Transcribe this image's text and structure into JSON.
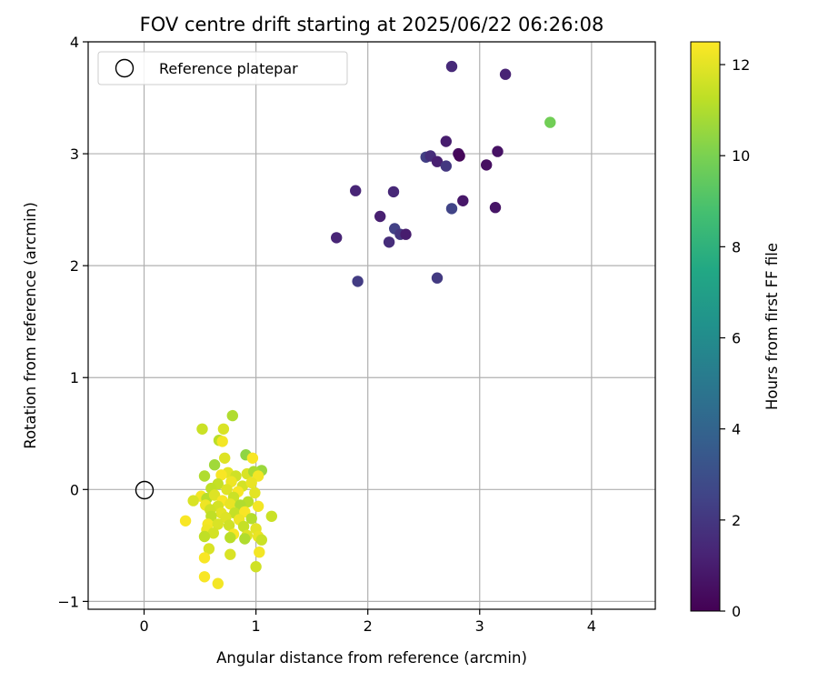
{
  "chart_data": {
    "type": "scatter",
    "title": "FOV centre drift starting at 2025/06/22 06:26:08",
    "xlabel": "Angular distance from reference (arcmin)",
    "ylabel": "Rotation from reference (arcmin)",
    "xlim": [
      -0.5,
      4.57
    ],
    "ylim": [
      -1.07,
      4.0
    ],
    "xticks": [
      0,
      1,
      2,
      3,
      4
    ],
    "yticks": [
      -1,
      0,
      1,
      2,
      3,
      4
    ],
    "grid": true,
    "legend": {
      "position": "top-left",
      "entries": [
        "Reference platepar"
      ]
    },
    "reference_point": {
      "x": 0,
      "y": 0
    },
    "colorbar": {
      "label": "Hours from first FF file",
      "range": [
        0,
        12.5
      ],
      "ticks": [
        0,
        2,
        4,
        6,
        8,
        10,
        12
      ],
      "colormap": "viridis"
    },
    "points": [
      [
        2.75,
        3.78,
        1.5
      ],
      [
        3.23,
        3.71,
        1.2
      ],
      [
        3.63,
        3.28,
        9.8
      ],
      [
        2.7,
        3.11,
        1.0
      ],
      [
        2.81,
        3.0,
        0.4
      ],
      [
        2.82,
        2.98,
        0.2
      ],
      [
        3.16,
        3.02,
        0.6
      ],
      [
        2.52,
        2.97,
        2.3
      ],
      [
        2.56,
        2.98,
        1.6
      ],
      [
        2.62,
        2.93,
        1.1
      ],
      [
        2.7,
        2.89,
        2.0
      ],
      [
        3.06,
        2.9,
        0.5
      ],
      [
        1.89,
        2.67,
        1.3
      ],
      [
        2.23,
        2.66,
        1.4
      ],
      [
        2.85,
        2.58,
        0.8
      ],
      [
        2.75,
        2.51,
        2.5
      ],
      [
        3.14,
        2.52,
        0.7
      ],
      [
        2.11,
        2.44,
        1.1
      ],
      [
        2.24,
        2.33,
        2.4
      ],
      [
        2.29,
        2.28,
        1.9
      ],
      [
        2.34,
        2.28,
        1.0
      ],
      [
        2.19,
        2.21,
        1.6
      ],
      [
        1.72,
        2.25,
        1.3
      ],
      [
        1.91,
        1.86,
        2.2
      ],
      [
        2.62,
        1.89,
        2.1
      ],
      [
        0.79,
        0.66,
        11.0
      ],
      [
        0.52,
        0.54,
        11.5
      ],
      [
        0.71,
        0.54,
        11.8
      ],
      [
        0.67,
        0.44,
        11.2
      ],
      [
        0.7,
        0.43,
        12.3
      ],
      [
        0.91,
        0.31,
        10.4
      ],
      [
        0.72,
        0.28,
        11.9
      ],
      [
        0.97,
        0.28,
        12.4
      ],
      [
        0.63,
        0.22,
        10.7
      ],
      [
        1.05,
        0.17,
        10.6
      ],
      [
        0.75,
        0.15,
        12.0
      ],
      [
        0.54,
        0.12,
        11.0
      ],
      [
        0.69,
        0.13,
        12.4
      ],
      [
        0.82,
        0.12,
        11.6
      ],
      [
        0.92,
        0.14,
        11.8
      ],
      [
        0.98,
        0.16,
        10.9
      ],
      [
        1.02,
        0.12,
        12.3
      ],
      [
        0.66,
        0.05,
        11.4
      ],
      [
        0.78,
        0.07,
        12.2
      ],
      [
        0.88,
        0.03,
        11.7
      ],
      [
        0.96,
        0.06,
        12.1
      ],
      [
        0.6,
        0.01,
        11.3
      ],
      [
        0.74,
        0.0,
        11.9
      ],
      [
        0.84,
        -0.02,
        12.4
      ],
      [
        0.99,
        -0.03,
        12.0
      ],
      [
        0.51,
        -0.06,
        12.3
      ],
      [
        0.56,
        -0.08,
        11.1
      ],
      [
        0.63,
        -0.05,
        11.9
      ],
      [
        0.8,
        -0.07,
        11.5
      ],
      [
        0.44,
        -0.1,
        11.8
      ],
      [
        0.7,
        -0.1,
        12.4
      ],
      [
        0.93,
        -0.11,
        11.2
      ],
      [
        0.55,
        -0.14,
        12.2
      ],
      [
        0.66,
        -0.15,
        11.7
      ],
      [
        0.77,
        -0.13,
        12.1
      ],
      [
        0.86,
        -0.14,
        11.0
      ],
      [
        1.02,
        -0.15,
        12.3
      ],
      [
        0.59,
        -0.18,
        11.6
      ],
      [
        0.69,
        -0.21,
        12.0
      ],
      [
        0.81,
        -0.21,
        11.4
      ],
      [
        0.9,
        -0.2,
        12.4
      ],
      [
        0.37,
        -0.28,
        12.4
      ],
      [
        0.6,
        -0.24,
        11.3
      ],
      [
        0.73,
        -0.25,
        11.9
      ],
      [
        0.85,
        -0.27,
        12.2
      ],
      [
        0.96,
        -0.26,
        11.1
      ],
      [
        1.14,
        -0.24,
        11.5
      ],
      [
        0.57,
        -0.31,
        12.3
      ],
      [
        0.66,
        -0.31,
        11.8
      ],
      [
        0.76,
        -0.32,
        11.6
      ],
      [
        0.89,
        -0.33,
        11.4
      ],
      [
        1.0,
        -0.35,
        12.0
      ],
      [
        0.56,
        -0.36,
        12.2
      ],
      [
        0.62,
        -0.39,
        11.7
      ],
      [
        0.8,
        -0.4,
        12.4
      ],
      [
        0.92,
        -0.41,
        11.9
      ],
      [
        0.54,
        -0.42,
        11.3
      ],
      [
        0.77,
        -0.43,
        11.2
      ],
      [
        0.9,
        -0.44,
        11.0
      ],
      [
        1.02,
        -0.42,
        12.1
      ],
      [
        1.05,
        -0.45,
        11.5
      ],
      [
        0.58,
        -0.53,
        11.8
      ],
      [
        1.03,
        -0.56,
        12.3
      ],
      [
        0.54,
        -0.61,
        12.4
      ],
      [
        0.77,
        -0.58,
        11.8
      ],
      [
        1.0,
        -0.69,
        11.6
      ],
      [
        0.54,
        -0.78,
        12.4
      ],
      [
        0.66,
        -0.84,
        12.3
      ]
    ]
  }
}
